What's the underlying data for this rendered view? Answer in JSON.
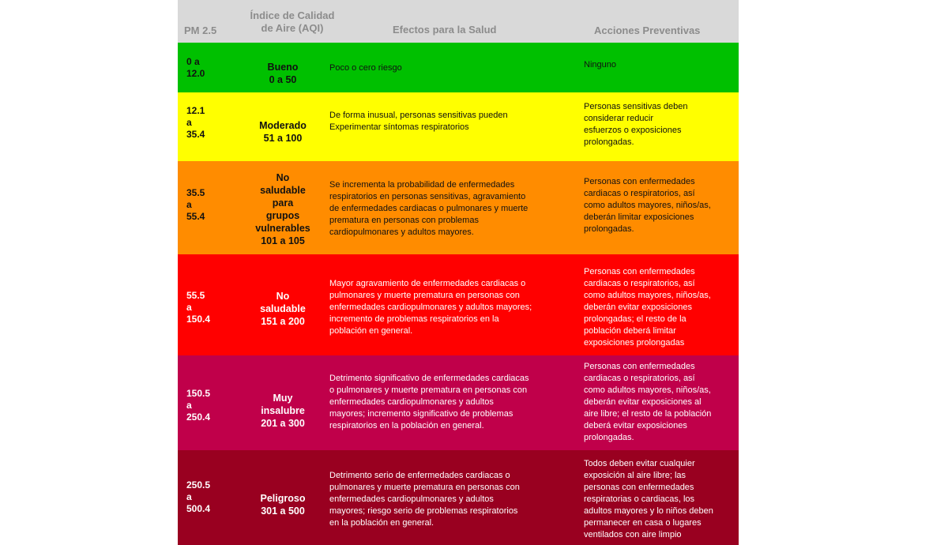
{
  "header": {
    "pm": "PM 2.5",
    "aqi": "Índice de Calidad\nde Aire (AQI)",
    "effects": "Efectos para la Salud",
    "actions": "Acciones Preventivas"
  },
  "rows": [
    {
      "color": "#00c000",
      "pm": "0 a\n12.0",
      "aqi": "Bueno\n0 a 50",
      "effects": "Poco o cero riesgo",
      "actions": "Ninguno"
    },
    {
      "color": "#ffff00",
      "pm": "12.1\na\n35.4",
      "aqi": "Moderado\n51 a 100",
      "effects": "De  forma inusual, personas sensitivas pueden\nExperimentar síntomas respiratorios",
      "actions": "Personas sensitivas deben\nconsiderar reducir\nesfuerzos o exposiciones\nprolongadas."
    },
    {
      "color": "#ff8c00",
      "pm": "35.5\na\n55.4",
      "aqi": "No\nsaludable\npara\ngrupos\nvulnerables\n101 a 105",
      "effects": "Se incrementa la probabilidad de enfermedades\nrespiratorios en personas sensitivas, agravamiento\nde enfermedades cardiacas o pulmonares y muerte\nprematura en personas con problemas\ncardiopulmonares y adultos mayores.",
      "actions": "Personas con enfermedades\ncardiacas o respiratorios, así\ncomo adultos mayores, niños/as,\ndeberán limitar  exposiciones\nprolongadas."
    },
    {
      "color": "#ff0000",
      "pm": "55.5\na\n150.4",
      "aqi": "No\nsaludable\n151 a 200",
      "effects": "Mayor agravamiento de enfermedades cardiacas o\npulmonares y muerte prematura en personas con\nenfermedades cardiopulmonares y adultos mayores;\nincremento de problemas respiratorios en la\npoblación en general.",
      "actions": "Personas con enfermedades\ncardiacas o respiratorios, así\ncomo adultos mayores, niños/as,\ndeberán evitar exposiciones\nprolongadas; el resto de la\npoblación deberá limitar\nexposiciones prolongadas"
    },
    {
      "color": "#c0004a",
      "pm": "150.5\na\n250.4",
      "aqi": "Muy\ninsalubre\n201 a 300",
      "effects": "Detrimento significativo de enfermedades cardiacas\no pulmonares y muerte prematura en personas con\nenfermedades cardiopulmonares y adultos\nmayores; incremento significativo de problemas\nrespiratorios en la población en general.",
      "actions": "Personas con enfermedades\ncardiacas o respiratorios, así\ncomo adultos mayores, niños/as,\ndeberán evitar exposiciones al\naire libre; el resto de la población\ndeberá evitar exposiciones\nprolongadas."
    },
    {
      "color": "#990020",
      "pm": "250.5\na\n500.4",
      "aqi": "Peligroso\n301 a 500",
      "effects": "Detrimento serio de enfermedades cardiacas o\npulmonares y muerte prematura en personas con\nenfermedades cardiopulmonares y adultos\nmayores; riesgo serio de problemas respiratorios\nen la población en general.",
      "actions": "Todos deben evitar cualquier\nexposición al aire libre; las\npersonas con enfermedades\nrespiratorias o cardiacas, los\nadultos mayores y lo niños deben\npermanecer en casa o lugares\nventilados con aire limpio"
    }
  ]
}
